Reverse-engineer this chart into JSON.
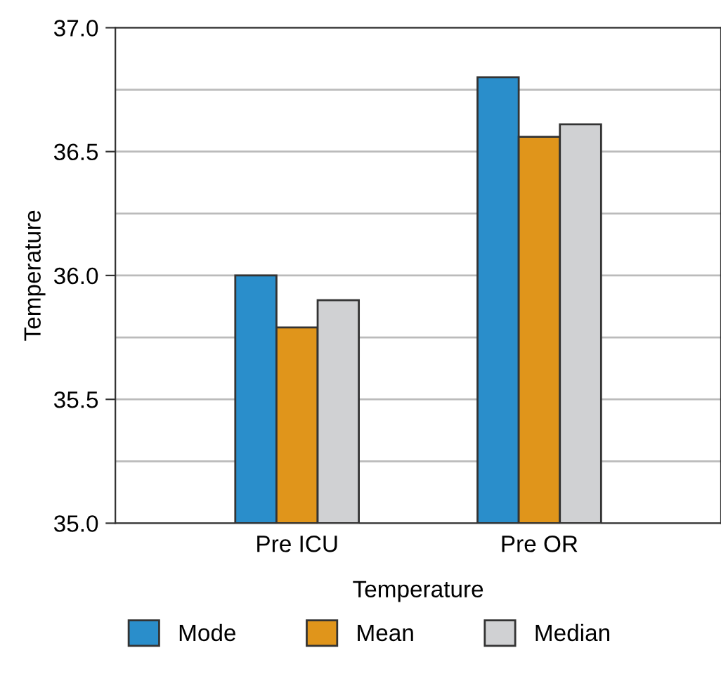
{
  "chart_data": {
    "type": "bar",
    "xlabel": "Temperature",
    "ylabel": "Temperature",
    "categories": [
      "Pre ICU",
      "Pre OR"
    ],
    "series": [
      {
        "name": "Mode",
        "color": "#2a8ecb",
        "values": [
          36.0,
          36.8
        ]
      },
      {
        "name": "Mean",
        "color": "#e0951b",
        "values": [
          35.79,
          36.56
        ]
      },
      {
        "name": "Median",
        "color": "#d0d1d3",
        "values": [
          35.9,
          36.61
        ]
      }
    ],
    "ylim": [
      35.0,
      37.0
    ],
    "yticks": [
      {
        "value": 35,
        "label": "35.0"
      },
      {
        "value": 35.25,
        "label": null
      },
      35.5,
      {
        "value": 35.75,
        "label": null
      },
      {
        "value": 36,
        "label": "36.0"
      },
      {
        "value": 36.25,
        "label": null
      },
      36.5,
      {
        "value": 36.75,
        "label": null
      },
      {
        "value": 37,
        "label": "37.0"
      }
    ],
    "grid": "y",
    "legend": "bottom"
  }
}
